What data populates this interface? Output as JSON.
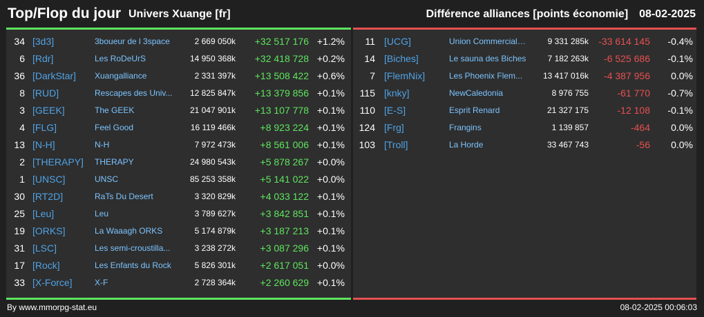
{
  "header": {
    "title": "Top/Flop du jour",
    "subtitle": "Univers Xuange [fr]",
    "metric": "Différence alliances [points économie]",
    "date": "08-02-2025"
  },
  "colors": {
    "positive": "#5ee55e",
    "negative": "#e85050",
    "tag": "#4fa3e6",
    "name": "#7cc4ff",
    "top_line": "#5ee55e",
    "flop_line": "#e85050"
  },
  "top": [
    {
      "rank": "34",
      "tag": "[3d3]",
      "name": "3boueur de l 3space",
      "points": "2 669 050k",
      "diff": "+32 517 176",
      "pct": "+1.2%"
    },
    {
      "rank": "6",
      "tag": "[Rdr]",
      "name": "Les RoDeUrS",
      "points": "14 950 368k",
      "diff": "+32 418 728",
      "pct": "+0.2%"
    },
    {
      "rank": "36",
      "tag": "[DarkStar]",
      "name": "Xuangalliance",
      "points": "2 331 397k",
      "diff": "+13 508 422",
      "pct": "+0.6%"
    },
    {
      "rank": "8",
      "tag": "[RUD]",
      "name": "Rescapes des Univ...",
      "points": "12 825 847k",
      "diff": "+13 379 856",
      "pct": "+0.1%"
    },
    {
      "rank": "3",
      "tag": "[GEEK]",
      "name": "The GEEK",
      "points": "21 047 901k",
      "diff": "+13 107 778",
      "pct": "+0.1%"
    },
    {
      "rank": "4",
      "tag": "[FLG]",
      "name": "Feel Good",
      "points": "16 119 466k",
      "diff": "+8 923 224",
      "pct": "+0.1%"
    },
    {
      "rank": "13",
      "tag": "[N-H]",
      "name": "N-H",
      "points": "7 972 473k",
      "diff": "+8 561 006",
      "pct": "+0.1%"
    },
    {
      "rank": "2",
      "tag": "[THERAPY]",
      "name": "THERAPY",
      "points": "24 980 543k",
      "diff": "+5 878 267",
      "pct": "+0.0%"
    },
    {
      "rank": "1",
      "tag": "[UNSC]",
      "name": "UNSC",
      "points": "85 253 358k",
      "diff": "+5 141 022",
      "pct": "+0.0%"
    },
    {
      "rank": "30",
      "tag": "[RT2D]",
      "name": "RaTs Du Desert",
      "points": "3 320 829k",
      "diff": "+4 033 122",
      "pct": "+0.1%"
    },
    {
      "rank": "25",
      "tag": "[Leu]",
      "name": "Leu",
      "points": "3 789 627k",
      "diff": "+3 842 851",
      "pct": "+0.1%"
    },
    {
      "rank": "19",
      "tag": "[ORKS]",
      "name": "La Waaagh ORKS",
      "points": "5 174 879k",
      "diff": "+3 187 213",
      "pct": "+0.1%"
    },
    {
      "rank": "31",
      "tag": "[LSC]",
      "name": "Les semi-croustilla...",
      "points": "3 238 272k",
      "diff": "+3 087 296",
      "pct": "+0.1%"
    },
    {
      "rank": "17",
      "tag": "[Rock]",
      "name": "Les Enfants du Rock",
      "points": "5 826 301k",
      "diff": "+2 617 051",
      "pct": "+0.0%"
    },
    {
      "rank": "33",
      "tag": "[X-Force]",
      "name": "X-F",
      "points": "2 728 364k",
      "diff": "+2 260 629",
      "pct": "+0.1%"
    }
  ],
  "flop": [
    {
      "rank": "11",
      "tag": "[UCG]",
      "name": "Union Commerciale...",
      "points": "9 331 285k",
      "diff": "-33 614 145",
      "pct": "-0.4%"
    },
    {
      "rank": "14",
      "tag": "[Biches]",
      "name": "Le sauna des Biches",
      "points": "7 182 263k",
      "diff": "-6 525 686",
      "pct": "-0.1%"
    },
    {
      "rank": "7",
      "tag": "[FlemNix]",
      "name": "Les Phoenix Flem...",
      "points": "13 417 016k",
      "diff": "-4 387 956",
      "pct": "0.0%"
    },
    {
      "rank": "115",
      "tag": "[knky]",
      "name": "NewCaledonia",
      "points": "8 976 755",
      "diff": "-61 770",
      "pct": "-0.7%"
    },
    {
      "rank": "110",
      "tag": "[E-S]",
      "name": "Esprit Renard",
      "points": "21 327 175",
      "diff": "-12 108",
      "pct": "-0.1%"
    },
    {
      "rank": "124",
      "tag": "[Frg]",
      "name": "Frangins",
      "points": "1 139 857",
      "diff": "-464",
      "pct": "0.0%"
    },
    {
      "rank": "103",
      "tag": "[Troll]",
      "name": "La Horde",
      "points": "33 467 743",
      "diff": "-56",
      "pct": "0.0%"
    }
  ],
  "footer": {
    "source": "By www.mmorpg-stat.eu",
    "timestamp": "08-02-2025 00:06:03"
  }
}
